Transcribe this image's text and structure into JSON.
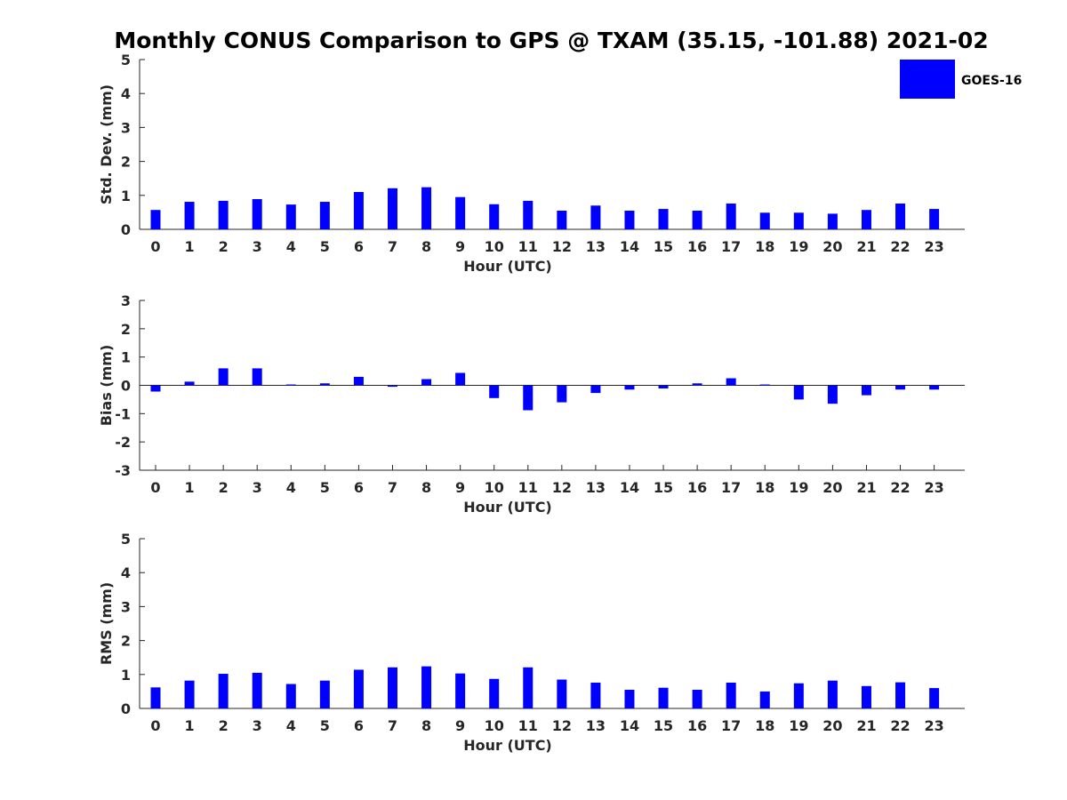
{
  "title": "Monthly CONUS Comparison to GPS @ TXAM (35.15, -101.88) 2021-02",
  "legend": {
    "label": "GOES-16",
    "color": "#0000ff"
  },
  "chart_data": [
    {
      "type": "bar",
      "id": "stddev",
      "series_name": "GOES-16",
      "color": "#0000ff",
      "categories": [
        "0",
        "1",
        "2",
        "3",
        "4",
        "5",
        "6",
        "7",
        "8",
        "9",
        "10",
        "11",
        "12",
        "13",
        "14",
        "15",
        "16",
        "17",
        "18",
        "19",
        "20",
        "21",
        "22",
        "23"
      ],
      "values": [
        0.57,
        0.81,
        0.84,
        0.89,
        0.73,
        0.81,
        1.1,
        1.21,
        1.24,
        0.95,
        0.74,
        0.84,
        0.55,
        0.7,
        0.55,
        0.6,
        0.55,
        0.76,
        0.49,
        0.49,
        0.46,
        0.57,
        0.76,
        0.6
      ],
      "xlabel": "Hour (UTC)",
      "ylabel": "Std. Dev. (mm)",
      "ylim": [
        0,
        5
      ],
      "yticks": [
        "0",
        "1",
        "2",
        "3",
        "4",
        "5"
      ],
      "grid": false
    },
    {
      "type": "bar",
      "id": "bias",
      "series_name": "GOES-16",
      "color": "#0000ff",
      "categories": [
        "0",
        "1",
        "2",
        "3",
        "4",
        "5",
        "6",
        "7",
        "8",
        "9",
        "10",
        "11",
        "12",
        "13",
        "14",
        "15",
        "16",
        "17",
        "18",
        "19",
        "20",
        "21",
        "22",
        "23"
      ],
      "values": [
        -0.22,
        0.13,
        0.6,
        0.6,
        0.03,
        0.07,
        0.3,
        -0.05,
        0.22,
        0.44,
        -0.45,
        -0.88,
        -0.6,
        -0.27,
        -0.15,
        -0.11,
        0.07,
        0.25,
        0.03,
        -0.5,
        -0.65,
        -0.35,
        -0.15,
        -0.15
      ],
      "xlabel": "Hour (UTC)",
      "ylabel": "Bias (mm)",
      "ylim": [
        -3,
        3
      ],
      "yticks": [
        "-3",
        "-2",
        "-1",
        "0",
        "1",
        "2",
        "3"
      ],
      "grid": false
    },
    {
      "type": "bar",
      "id": "rms",
      "series_name": "GOES-16",
      "color": "#0000ff",
      "categories": [
        "0",
        "1",
        "2",
        "3",
        "4",
        "5",
        "6",
        "7",
        "8",
        "9",
        "10",
        "11",
        "12",
        "13",
        "14",
        "15",
        "16",
        "17",
        "18",
        "19",
        "20",
        "21",
        "22",
        "23"
      ],
      "values": [
        0.62,
        0.82,
        1.02,
        1.05,
        0.72,
        0.82,
        1.14,
        1.21,
        1.24,
        1.03,
        0.87,
        1.21,
        0.85,
        0.76,
        0.55,
        0.61,
        0.55,
        0.76,
        0.5,
        0.74,
        0.82,
        0.66,
        0.77,
        0.6
      ],
      "xlabel": "Hour (UTC)",
      "ylabel": "RMS (mm)",
      "ylim": [
        0,
        5
      ],
      "yticks": [
        "0",
        "1",
        "2",
        "3",
        "4",
        "5"
      ],
      "grid": false
    }
  ]
}
